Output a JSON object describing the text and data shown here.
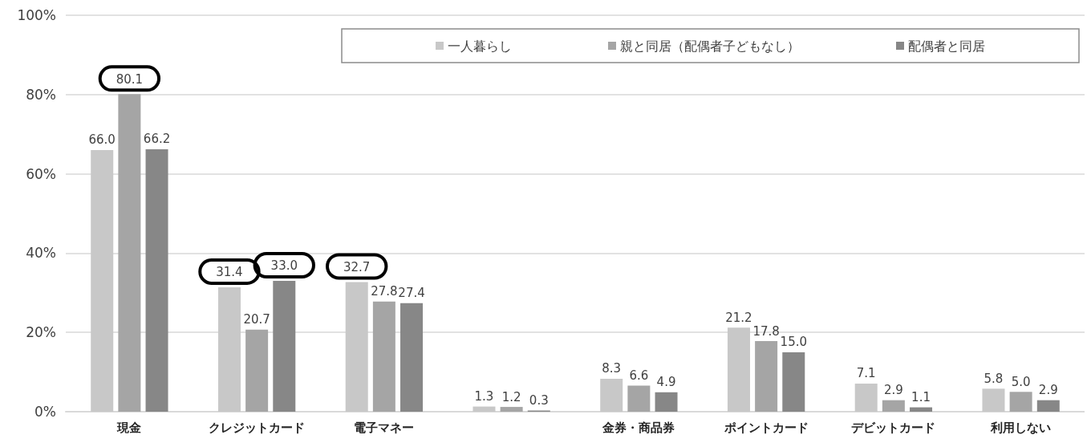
{
  "chart_data": {
    "type": "bar",
    "categories": [
      "現金",
      "クレジットカード",
      "電子マネー",
      null,
      "金券・商品券",
      "ポイントカード",
      "デビットカード",
      "利用しない"
    ],
    "series": [
      {
        "name": "一人暮らし",
        "color": "#c8c8c8",
        "values": [
          66.0,
          31.4,
          32.7,
          1.3,
          8.3,
          21.2,
          7.1,
          5.8
        ],
        "value_labels": [
          "66.0",
          "31.4",
          "32.7",
          "1.3",
          "8.3",
          "21.2",
          "7.1",
          "5.8"
        ]
      },
      {
        "name": "親と同居（配偶者子どもなし）",
        "color": "#a5a5a5",
        "values": [
          80.1,
          20.7,
          27.8,
          1.2,
          6.6,
          17.8,
          2.9,
          5.0
        ],
        "value_labels": [
          "80.1",
          "20.7",
          "27.8",
          "1.2",
          "6.6",
          "17.8",
          "2.9",
          "5.0"
        ]
      },
      {
        "name": "配偶者と同居",
        "color": "#878787",
        "values": [
          66.2,
          33.0,
          27.4,
          0.3,
          4.9,
          15.0,
          1.1,
          2.9
        ],
        "value_labels": [
          "66.2",
          "33.0",
          "27.4",
          "0.3",
          "4.9",
          "15.0",
          "1.1",
          "2.9"
        ]
      }
    ],
    "ylim": [
      0,
      100
    ],
    "yticks": [
      {
        "value": 0,
        "label": "0%"
      },
      {
        "value": 20,
        "label": "20%"
      },
      {
        "value": 40,
        "label": "40%"
      },
      {
        "value": 60,
        "label": "60%"
      },
      {
        "value": 80,
        "label": "80%"
      },
      {
        "value": 100,
        "label": "100%"
      }
    ],
    "grid": "y",
    "legend": "top right"
  }
}
